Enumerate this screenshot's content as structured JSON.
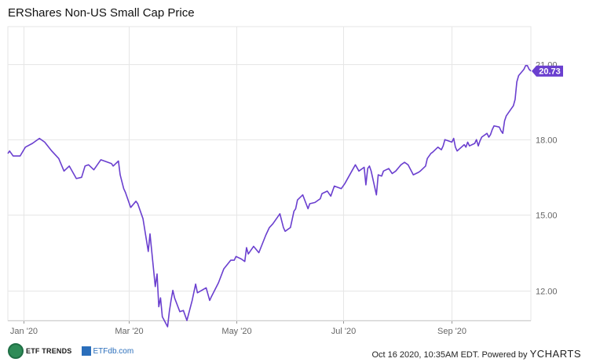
{
  "chart_data": {
    "type": "line",
    "title": "ERShares Non-US Small Cap Price",
    "x_tick_labels": [
      "Jan '20",
      "Mar '20",
      "May '20",
      "Jul '20",
      "Sep '20"
    ],
    "x_tick_dates": [
      "2020-01-01",
      "2020-03-01",
      "2020-05-01",
      "2020-07-01",
      "2020-09-01"
    ],
    "y_tick_labels": [
      "21.00",
      "18.00",
      "15.00",
      "12.00"
    ],
    "y_tick_values": [
      21,
      18,
      15,
      12
    ],
    "xlim": [
      "2019-12-23",
      "2020-10-16"
    ],
    "ylim": [
      10.8,
      22.5
    ],
    "grid": true,
    "series": [
      {
        "color": "#6a3fcf",
        "last_value_label": "20.73",
        "points": [
          [
            "2019-12-23",
            17.45
          ],
          [
            "2019-12-24",
            17.55
          ],
          [
            "2019-12-26",
            17.35
          ],
          [
            "2019-12-30",
            17.35
          ],
          [
            "2020-01-02",
            17.7
          ],
          [
            "2020-01-06",
            17.85
          ],
          [
            "2020-01-10",
            18.05
          ],
          [
            "2020-01-13",
            17.9
          ],
          [
            "2020-01-17",
            17.55
          ],
          [
            "2020-01-21",
            17.25
          ],
          [
            "2020-01-24",
            16.75
          ],
          [
            "2020-01-27",
            16.95
          ],
          [
            "2020-01-31",
            16.45
          ],
          [
            "2020-02-03",
            16.5
          ],
          [
            "2020-02-05",
            16.95
          ],
          [
            "2020-02-07",
            17.0
          ],
          [
            "2020-02-10",
            16.8
          ],
          [
            "2020-02-14",
            17.2
          ],
          [
            "2020-02-20",
            17.05
          ],
          [
            "2020-02-21",
            16.95
          ],
          [
            "2020-02-24",
            17.15
          ],
          [
            "2020-02-25",
            16.6
          ],
          [
            "2020-02-27",
            16.05
          ],
          [
            "2020-02-28",
            15.9
          ],
          [
            "2020-03-02",
            15.3
          ],
          [
            "2020-03-05",
            15.55
          ],
          [
            "2020-03-06",
            15.45
          ],
          [
            "2020-03-09",
            14.85
          ],
          [
            "2020-03-12",
            13.55
          ],
          [
            "2020-03-13",
            14.25
          ],
          [
            "2020-03-16",
            12.15
          ],
          [
            "2020-03-17",
            12.65
          ],
          [
            "2020-03-18",
            11.35
          ],
          [
            "2020-03-19",
            11.7
          ],
          [
            "2020-03-20",
            10.95
          ],
          [
            "2020-03-23",
            10.55
          ],
          [
            "2020-03-24",
            11.15
          ],
          [
            "2020-03-25",
            11.6
          ],
          [
            "2020-03-26",
            12.0
          ],
          [
            "2020-03-27",
            11.7
          ],
          [
            "2020-03-30",
            11.15
          ],
          [
            "2020-04-01",
            11.2
          ],
          [
            "2020-04-03",
            10.8
          ],
          [
            "2020-04-06",
            11.6
          ],
          [
            "2020-04-08",
            12.25
          ],
          [
            "2020-04-09",
            11.9
          ],
          [
            "2020-04-14",
            12.1
          ],
          [
            "2020-04-16",
            11.6
          ],
          [
            "2020-04-17",
            11.75
          ],
          [
            "2020-04-21",
            12.3
          ],
          [
            "2020-04-24",
            12.85
          ],
          [
            "2020-04-28",
            13.2
          ],
          [
            "2020-04-30",
            13.2
          ],
          [
            "2020-05-01",
            13.35
          ],
          [
            "2020-05-04",
            13.25
          ],
          [
            "2020-05-06",
            13.15
          ],
          [
            "2020-05-07",
            13.7
          ],
          [
            "2020-05-08",
            13.45
          ],
          [
            "2020-05-11",
            13.75
          ],
          [
            "2020-05-14",
            13.5
          ],
          [
            "2020-05-18",
            14.2
          ],
          [
            "2020-05-20",
            14.5
          ],
          [
            "2020-05-22",
            14.65
          ],
          [
            "2020-05-26",
            15.05
          ],
          [
            "2020-05-28",
            14.5
          ],
          [
            "2020-05-29",
            14.35
          ],
          [
            "2020-06-01",
            14.5
          ],
          [
            "2020-06-03",
            15.15
          ],
          [
            "2020-06-04",
            15.25
          ],
          [
            "2020-06-05",
            15.6
          ],
          [
            "2020-06-08",
            15.8
          ],
          [
            "2020-06-11",
            15.25
          ],
          [
            "2020-06-12",
            15.45
          ],
          [
            "2020-06-15",
            15.5
          ],
          [
            "2020-06-18",
            15.65
          ],
          [
            "2020-06-19",
            15.85
          ],
          [
            "2020-06-22",
            15.95
          ],
          [
            "2020-06-24",
            15.75
          ],
          [
            "2020-06-26",
            16.15
          ],
          [
            "2020-06-30",
            16.05
          ],
          [
            "2020-07-02",
            16.25
          ],
          [
            "2020-07-06",
            16.75
          ],
          [
            "2020-07-08",
            17.0
          ],
          [
            "2020-07-10",
            16.75
          ],
          [
            "2020-07-13",
            16.9
          ],
          [
            "2020-07-14",
            16.2
          ],
          [
            "2020-07-15",
            16.85
          ],
          [
            "2020-07-16",
            16.95
          ],
          [
            "2020-07-17",
            16.75
          ],
          [
            "2020-07-20",
            15.8
          ],
          [
            "2020-07-21",
            16.6
          ],
          [
            "2020-07-23",
            16.55
          ],
          [
            "2020-07-24",
            16.75
          ],
          [
            "2020-07-27",
            16.85
          ],
          [
            "2020-07-29",
            16.65
          ],
          [
            "2020-07-31",
            16.75
          ],
          [
            "2020-08-03",
            17.0
          ],
          [
            "2020-08-05",
            17.1
          ],
          [
            "2020-08-07",
            17.0
          ],
          [
            "2020-08-10",
            16.6
          ],
          [
            "2020-08-13",
            16.7
          ],
          [
            "2020-08-14",
            16.75
          ],
          [
            "2020-08-17",
            16.95
          ],
          [
            "2020-08-18",
            17.25
          ],
          [
            "2020-08-20",
            17.45
          ],
          [
            "2020-08-21",
            17.5
          ],
          [
            "2020-08-24",
            17.7
          ],
          [
            "2020-08-26",
            17.6
          ],
          [
            "2020-08-27",
            17.75
          ],
          [
            "2020-08-28",
            18.0
          ],
          [
            "2020-09-01",
            17.9
          ],
          [
            "2020-09-02",
            18.05
          ],
          [
            "2020-09-03",
            17.7
          ],
          [
            "2020-09-04",
            17.55
          ],
          [
            "2020-09-08",
            17.8
          ],
          [
            "2020-09-09",
            17.7
          ],
          [
            "2020-09-10",
            17.9
          ],
          [
            "2020-09-11",
            17.75
          ],
          [
            "2020-09-14",
            17.85
          ],
          [
            "2020-09-15",
            18.0
          ],
          [
            "2020-09-16",
            17.75
          ],
          [
            "2020-09-17",
            17.95
          ],
          [
            "2020-09-18",
            18.1
          ],
          [
            "2020-09-21",
            18.25
          ],
          [
            "2020-09-22",
            18.1
          ],
          [
            "2020-09-23",
            18.2
          ],
          [
            "2020-09-24",
            18.4
          ],
          [
            "2020-09-25",
            18.55
          ],
          [
            "2020-09-28",
            18.5
          ],
          [
            "2020-09-29",
            18.35
          ],
          [
            "2020-09-30",
            18.25
          ],
          [
            "2020-10-01",
            18.75
          ],
          [
            "2020-10-02",
            18.95
          ],
          [
            "2020-10-05",
            19.25
          ],
          [
            "2020-10-06",
            19.35
          ],
          [
            "2020-10-07",
            19.6
          ],
          [
            "2020-10-08",
            20.3
          ],
          [
            "2020-10-09",
            20.55
          ],
          [
            "2020-10-12",
            20.8
          ],
          [
            "2020-10-13",
            20.95
          ],
          [
            "2020-10-14",
            20.95
          ],
          [
            "2020-10-15",
            20.8
          ],
          [
            "2020-10-16",
            20.73
          ]
        ]
      }
    ]
  },
  "footer": {
    "brand_primary": "ETF TRENDS",
    "brand_secondary": "ETFdb.com",
    "timestamp": "Oct 16 2020, 10:35AM EDT. Powered by",
    "powered_by": "YCHARTS"
  },
  "colors": {
    "line": "#6a3fcf",
    "grid": "#e6e6e6",
    "axis_text": "#666666",
    "label_bg": "#6a3fcf"
  }
}
